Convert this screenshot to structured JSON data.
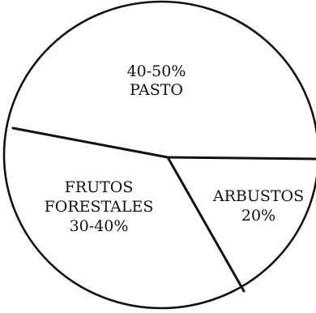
{
  "chart_data": {
    "type": "pie",
    "title": "",
    "slices": [
      {
        "name": "PASTO",
        "label": "40-50%",
        "value": 45
      },
      {
        "name": "ARBUSTOS",
        "label": "20%",
        "value": 20
      },
      {
        "name": "FRUTOS FORESTALES",
        "name_lines": [
          "FRUTOS",
          "FORESTALES"
        ],
        "label": "30-40%",
        "value": 35
      }
    ],
    "colors": {
      "line": "#111111",
      "fill": "#ffffff",
      "text": "#111111"
    },
    "legend": "none"
  }
}
